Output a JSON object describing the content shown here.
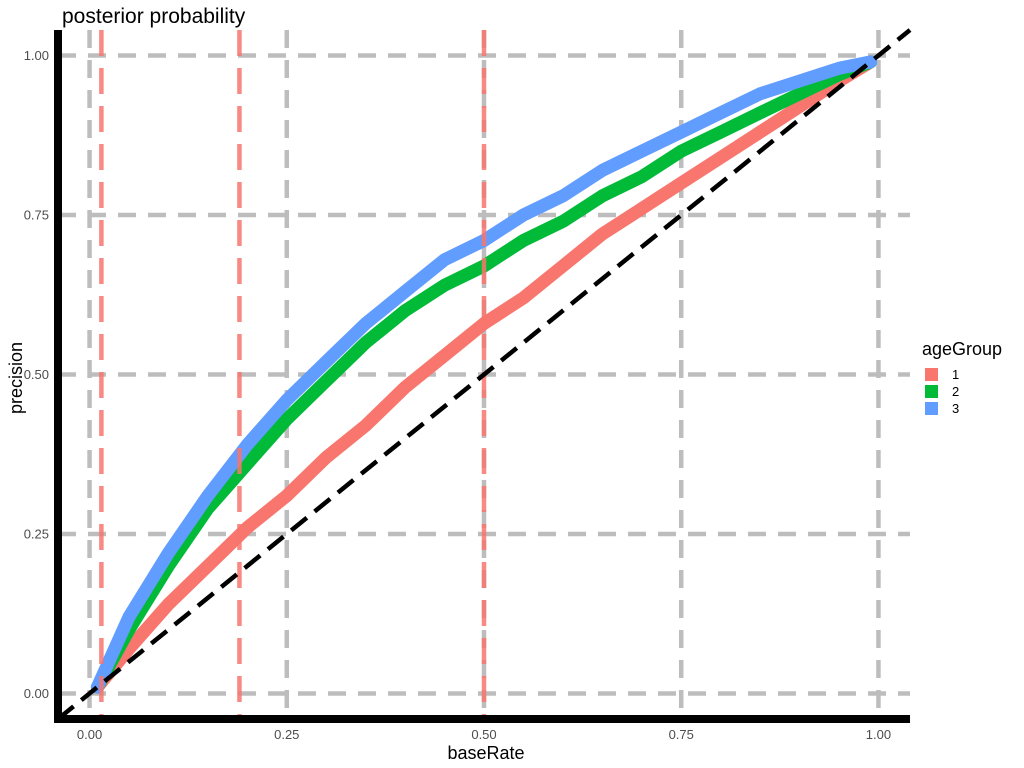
{
  "chart_data": {
    "type": "line",
    "title": "posterior probability",
    "xlabel": "baseRate",
    "ylabel": "precision",
    "xlim": [
      -0.04,
      1.04
    ],
    "ylim": [
      -0.04,
      1.04
    ],
    "x_ticks": [
      0,
      0.25,
      0.5,
      0.75,
      1.0
    ],
    "x_tick_labels": [
      "0.00",
      "0.25",
      "0.50",
      "0.75",
      "1.00"
    ],
    "y_ticks": [
      0,
      0.25,
      0.5,
      0.75,
      1.0
    ],
    "y_tick_labels": [
      "0.00",
      "0.25",
      "0.50",
      "0.75",
      "1.00"
    ],
    "grid": "dashed major gridlines",
    "legend": {
      "title": "ageGroup",
      "position": "right"
    },
    "x": [
      0.01,
      0.05,
      0.1,
      0.15,
      0.2,
      0.25,
      0.3,
      0.35,
      0.4,
      0.45,
      0.5,
      0.55,
      0.6,
      0.65,
      0.7,
      0.75,
      0.8,
      0.85,
      0.9,
      0.95,
      0.99
    ],
    "series": [
      {
        "name": "1",
        "color": "#F8766D",
        "values": [
          0.01,
          0.07,
          0.14,
          0.2,
          0.26,
          0.31,
          0.37,
          0.42,
          0.48,
          0.53,
          0.58,
          0.62,
          0.67,
          0.72,
          0.76,
          0.8,
          0.84,
          0.88,
          0.92,
          0.96,
          0.99
        ]
      },
      {
        "name": "2",
        "color": "#00BA38",
        "values": [
          0.01,
          0.1,
          0.2,
          0.29,
          0.36,
          0.43,
          0.49,
          0.55,
          0.6,
          0.64,
          0.67,
          0.71,
          0.74,
          0.78,
          0.81,
          0.85,
          0.88,
          0.91,
          0.94,
          0.97,
          0.99
        ]
      },
      {
        "name": "3",
        "color": "#619CFF",
        "values": [
          0.01,
          0.12,
          0.22,
          0.31,
          0.39,
          0.46,
          0.52,
          0.58,
          0.63,
          0.68,
          0.71,
          0.75,
          0.78,
          0.82,
          0.85,
          0.88,
          0.91,
          0.94,
          0.96,
          0.98,
          0.99
        ]
      }
    ],
    "reference_line": {
      "style": "black dashed",
      "from": [
        -0.04,
        -0.04
      ],
      "to": [
        1.04,
        1.04
      ]
    },
    "vlines": {
      "color": "#F8766D",
      "x": [
        0.015,
        0.19,
        0.5
      ]
    }
  }
}
